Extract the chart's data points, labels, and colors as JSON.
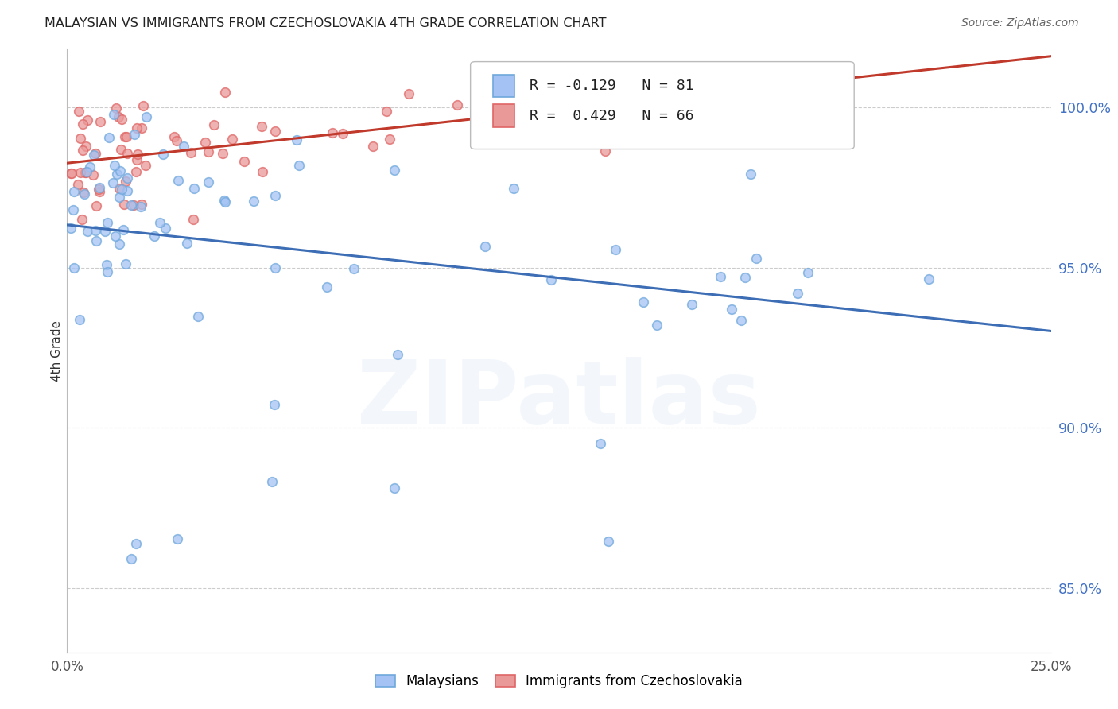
{
  "title": "MALAYSIAN VS IMMIGRANTS FROM CZECHOSLOVAKIA 4TH GRADE CORRELATION CHART",
  "source": "Source: ZipAtlas.com",
  "ylabel": "4th Grade",
  "yticks": [
    85.0,
    90.0,
    95.0,
    100.0
  ],
  "xlim": [
    0.0,
    0.25
  ],
  "ylim": [
    83.0,
    101.8
  ],
  "legend_blue_label": "Malaysians",
  "legend_pink_label": "Immigrants from Czechoslovakia",
  "R_blue": -0.129,
  "N_blue": 81,
  "R_pink": 0.429,
  "N_pink": 66,
  "blue_color": "#a4c2f4",
  "blue_edge_color": "#6fa8dc",
  "pink_color": "#ea9999",
  "pink_edge_color": "#e06666",
  "blue_line_color": "#3d6eb5",
  "pink_line_color": "#c0392b",
  "background_color": "#ffffff",
  "grid_color": "#cccccc",
  "title_color": "#222222",
  "source_color": "#666666",
  "axis_label_color": "#333333",
  "right_tick_color": "#4472c4",
  "marker_size": 70,
  "watermark_text": "ZIPatlas",
  "watermark_alpha": 0.13,
  "watermark_fontsize": 80
}
